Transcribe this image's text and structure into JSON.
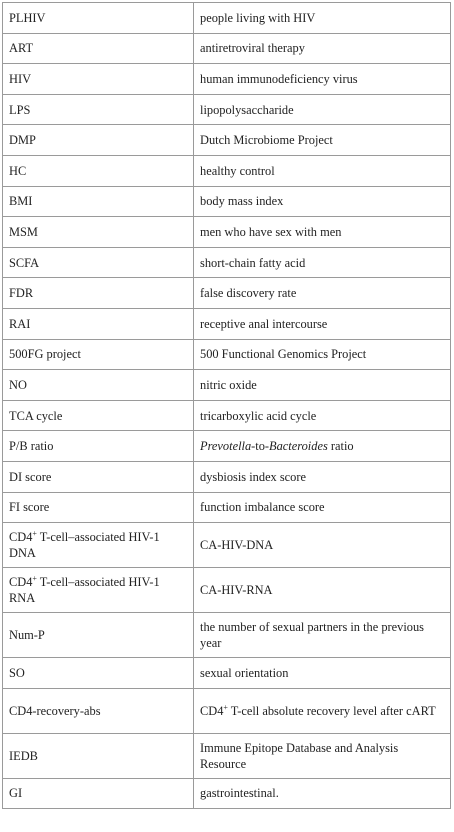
{
  "rows": [
    {
      "abbr": "PLHIV",
      "def": "people living with HIV"
    },
    {
      "abbr": "ART",
      "def": "antiretroviral therapy"
    },
    {
      "abbr": "HIV",
      "def": "human immunodeficiency virus"
    },
    {
      "abbr": "LPS",
      "def": "lipopolysaccharide"
    },
    {
      "abbr": "DMP",
      "def": "Dutch Microbiome Project"
    },
    {
      "abbr": "HC",
      "def": "healthy control"
    },
    {
      "abbr": "BMI",
      "def": "body mass index"
    },
    {
      "abbr": "MSM",
      "def": "men who have sex with men"
    },
    {
      "abbr": "SCFA",
      "def": "short-chain fatty acid"
    },
    {
      "abbr": "FDR",
      "def": "false discovery rate"
    },
    {
      "abbr": "RAI",
      "def": "receptive anal intercourse"
    },
    {
      "abbr": "500FG project",
      "def": "500 Functional Genomics Project"
    },
    {
      "abbr": "NO",
      "def": "nitric oxide"
    },
    {
      "abbr": "TCA cycle",
      "def": "tricarboxylic acid cycle"
    },
    {
      "abbr": "P/B ratio",
      "def_italic_1": "Prevotella",
      "def_mid": "-to-",
      "def_italic_2": "Bacteroides",
      "def_tail": " ratio"
    },
    {
      "abbr": "DI score",
      "def": "dysbiosis index score"
    },
    {
      "abbr": "FI score",
      "def": "function imbalance score"
    },
    {
      "abbr_pre": "CD4",
      "abbr_sup": "+",
      "abbr_post": " T-cell–associated HIV-1 DNA",
      "def": "CA-HIV-DNA"
    },
    {
      "abbr_pre": "CD4",
      "abbr_sup": "+",
      "abbr_post": " T-cell–associated HIV-1 RNA",
      "def": "CA-HIV-RNA"
    },
    {
      "abbr": "Num-P",
      "def": "the number of sexual partners in the previous year"
    },
    {
      "abbr": "SO",
      "def": "sexual orientation"
    },
    {
      "abbr": "CD4-recovery-abs",
      "def_pre": "CD4",
      "def_sup": "+",
      "def_post": " T-cell absolute recovery level after cART"
    },
    {
      "abbr": "IEDB",
      "def": "Immune Epitope Database and Analysis Resource"
    },
    {
      "abbr": "GI",
      "def": "gastrointestinal."
    }
  ]
}
